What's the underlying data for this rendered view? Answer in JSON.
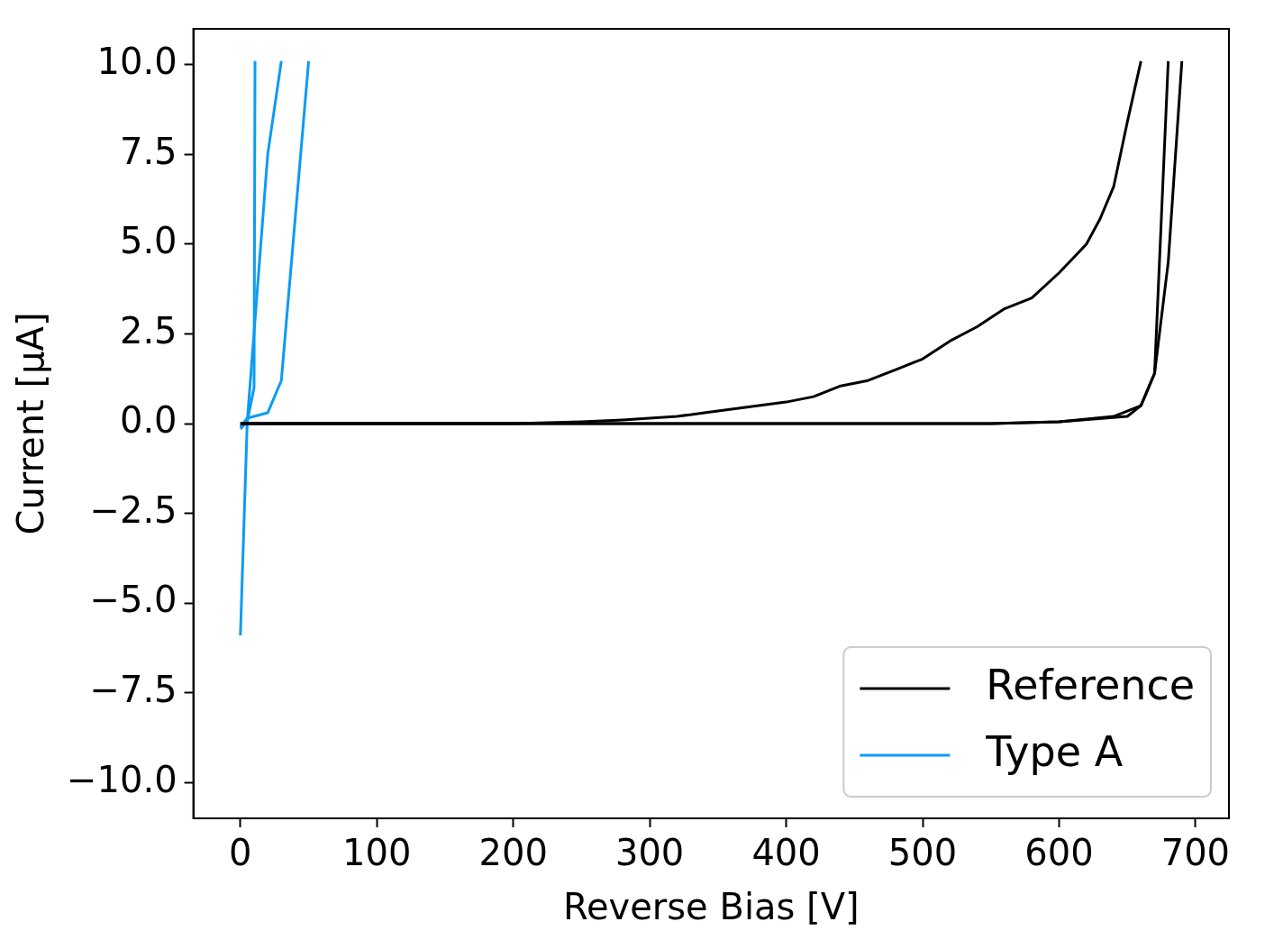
{
  "chart_data": {
    "type": "line",
    "xlabel": "Reverse Bias [V]",
    "ylabel": "Current [μA]",
    "xlim": [
      -34.5,
      724.5
    ],
    "ylim": [
      -11,
      11
    ],
    "xticks": [
      0,
      100,
      200,
      300,
      400,
      500,
      600,
      700
    ],
    "yticks": [
      {
        "value": -10,
        "label": "−10.0"
      },
      {
        "value": -7.5,
        "label": "−7.5"
      },
      {
        "value": -5,
        "label": "−5.0"
      },
      {
        "value": -2.5,
        "label": "−2.5"
      },
      {
        "value": 0,
        "label": "0.0"
      },
      {
        "value": 2.5,
        "label": "2.5"
      },
      {
        "value": 5,
        "label": "5.0"
      },
      {
        "value": 7.5,
        "label": "7.5"
      },
      {
        "value": 10,
        "label": "10.0"
      }
    ],
    "grid": false,
    "legend": "bottom right",
    "marker": "none",
    "line_style": "solid",
    "series": [
      {
        "name": "Reference",
        "color": "#000000",
        "x": [
          0,
          50,
          100,
          150,
          200,
          250,
          280,
          300,
          320,
          340,
          360,
          380,
          400,
          420,
          440,
          460,
          480,
          500,
          520,
          540,
          560,
          580,
          600,
          620,
          630,
          640,
          650,
          660
        ],
        "values": [
          0,
          0,
          0,
          0,
          0,
          0.05,
          0.1,
          0.15,
          0.2,
          0.3,
          0.4,
          0.5,
          0.6,
          0.75,
          1.05,
          1.2,
          1.5,
          1.8,
          2.3,
          2.7,
          3.2,
          3.5,
          4.2,
          5.0,
          5.7,
          6.6,
          8.4,
          10.1
        ]
      },
      {
        "color": "#000000",
        "x": [
          0,
          50,
          100,
          150,
          200,
          250,
          300,
          350,
          400,
          450,
          500,
          550,
          600,
          640,
          660,
          670,
          680
        ],
        "values": [
          0,
          0,
          0,
          0,
          0,
          0,
          0,
          0,
          0,
          0,
          0,
          0,
          0.05,
          0.2,
          0.5,
          1.4,
          10.1
        ]
      },
      {
        "color": "#000000",
        "x": [
          0,
          50,
          100,
          150,
          200,
          250,
          300,
          350,
          400,
          450,
          500,
          550,
          600,
          650,
          660,
          670,
          680,
          690
        ],
        "values": [
          0,
          0,
          0,
          0,
          0,
          0,
          0,
          0,
          0,
          0,
          0,
          0,
          0.05,
          0.2,
          0.5,
          1.4,
          4.5,
          10.1
        ]
      },
      {
        "name": "Type A",
        "color": "#0a9bf5",
        "x": [
          0,
          5,
          10,
          10.7
        ],
        "values": [
          -5.9,
          0.05,
          1.0,
          10.1
        ]
      },
      {
        "color": "#0a9bf5",
        "x": [
          0,
          5,
          20,
          30,
          50
        ],
        "values": [
          -0.1,
          0.15,
          0.3,
          1.2,
          10.1
        ]
      },
      {
        "color": "#0a9bf5",
        "x": [
          0,
          5,
          20,
          30
        ],
        "values": [
          -0.15,
          0.05,
          7.5,
          10.1
        ]
      }
    ]
  }
}
